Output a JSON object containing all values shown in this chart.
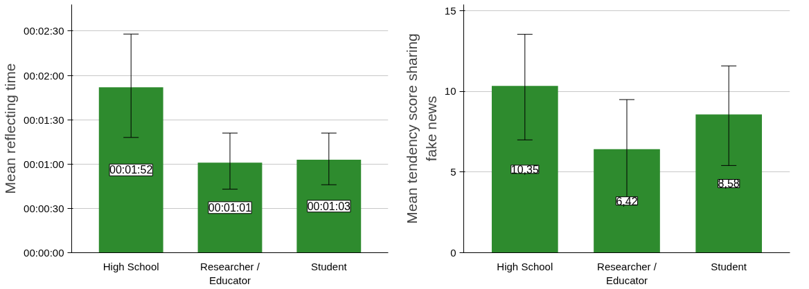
{
  "chart_data": [
    {
      "type": "bar",
      "ylabel": "Mean reflecting time",
      "categories": [
        "High School",
        "Researcher / Educator",
        "Student"
      ],
      "values": [
        112,
        61,
        63
      ],
      "colors": [
        "#2e8b2e",
        "#2e8b2e",
        "#2e8b2e"
      ],
      "errors": [
        [
          78,
          148
        ],
        [
          43,
          81
        ],
        [
          46,
          81
        ]
      ],
      "value_labels": [
        "00:01:52",
        "00:01:01",
        "00:01:03"
      ],
      "ylim": [
        0,
        168
      ],
      "yticks": [
        {
          "value": 0,
          "label": "00:00:00"
        },
        {
          "value": 30,
          "label": "00:00:30"
        },
        {
          "value": 60,
          "label": "00:01:00"
        },
        {
          "value": 90,
          "label": "00:01:30"
        },
        {
          "value": 120,
          "label": "00:02:00"
        },
        {
          "value": 150,
          "label": "00:02:30"
        }
      ],
      "grid": "y"
    },
    {
      "type": "bar",
      "ylabel": "Mean tendency score sharing fake news",
      "categories": [
        "High School",
        "Researcher / Educator",
        "Student"
      ],
      "values": [
        10.35,
        6.42,
        8.58
      ],
      "colors": [
        "#2e8b2e",
        "#2e8b2e",
        "#2e8b2e"
      ],
      "errors": [
        [
          7.0,
          13.55
        ],
        [
          3.27,
          9.5
        ],
        [
          5.41,
          11.59
        ]
      ],
      "value_labels": [
        "10,35",
        "6,42",
        "8,58"
      ],
      "ylim": [
        0,
        15.4
      ],
      "yticks": [
        0,
        5,
        10,
        15
      ],
      "grid": "y"
    }
  ]
}
